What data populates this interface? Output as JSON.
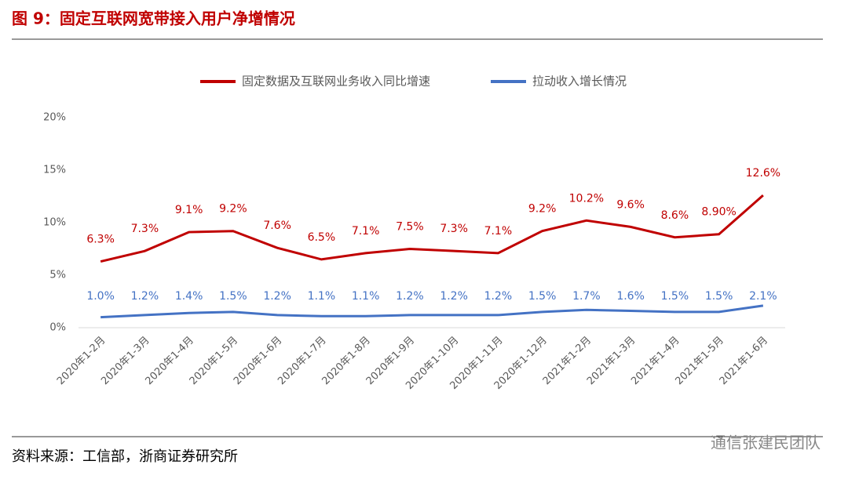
{
  "chart_data": {
    "type": "line",
    "title": "图 9：固定互联网宽带接入用户净增情况",
    "source": "资料来源：工信部，浙商证券研究所",
    "watermark": "通信张建民团队",
    "categories": [
      "2020年1-2月",
      "2020年1-3月",
      "2020年1-4月",
      "2020年1-5月",
      "2020年1-6月",
      "2020年1-7月",
      "2020年1-8月",
      "2020年1-9月",
      "2020年1-10月",
      "2020年1-11月",
      "2020年1-12月",
      "2021年1-2月",
      "2021年1-3月",
      "2021年1-4月",
      "2021年1-5月",
      "2021年1-6月"
    ],
    "series": [
      {
        "name": "固定数据及互联网业务收入同比增速",
        "color": "#c00000",
        "values": [
          6.3,
          7.3,
          9.1,
          9.2,
          7.6,
          6.5,
          7.1,
          7.5,
          7.3,
          7.1,
          9.2,
          10.2,
          9.6,
          8.6,
          8.9,
          12.6
        ],
        "value_labels": [
          "6.3%",
          "7.3%",
          "9.1%",
          "9.2%",
          "7.6%",
          "6.5%",
          "7.1%",
          "7.5%",
          "7.3%",
          "7.1%",
          "9.2%",
          "10.2%",
          "9.6%",
          "8.6%",
          "8.90%",
          "12.6%"
        ]
      },
      {
        "name": "拉动收入增长情况",
        "color": "#4472c4",
        "values": [
          1.0,
          1.2,
          1.4,
          1.5,
          1.2,
          1.1,
          1.1,
          1.2,
          1.2,
          1.2,
          1.5,
          1.7,
          1.6,
          1.5,
          1.5,
          2.1
        ],
        "value_labels": [
          "1.0%",
          "1.2%",
          "1.4%",
          "1.5%",
          "1.2%",
          "1.1%",
          "1.1%",
          "1.2%",
          "1.2%",
          "1.2%",
          "1.5%",
          "1.7%",
          "1.6%",
          "1.5%",
          "1.5%",
          "2.1%"
        ]
      }
    ],
    "ylim": [
      0,
      20
    ],
    "yticks": [
      {
        "value": 0,
        "label": "0%"
      },
      {
        "value": 5,
        "label": "5%"
      },
      {
        "value": 10,
        "label": "10%"
      },
      {
        "value": 15,
        "label": "15%"
      },
      {
        "value": 20,
        "label": "20%"
      }
    ],
    "grid": false
  }
}
